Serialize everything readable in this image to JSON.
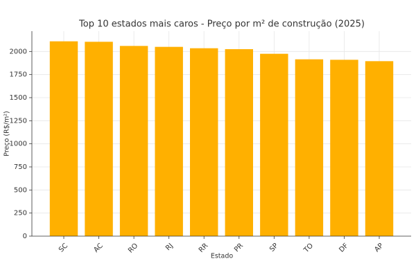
{
  "chart_data": {
    "type": "bar",
    "title": "Top 10 estados mais caros - Preço por m² de construção (2025)",
    "x_label": "Estado",
    "y_label": "Preço (R$/m²)",
    "categories": [
      "SC",
      "AC",
      "RO",
      "RJ",
      "RR",
      "PR",
      "SP",
      "TO",
      "DF",
      "AP"
    ],
    "values": [
      2110,
      2105,
      2060,
      2050,
      2035,
      2025,
      1975,
      1915,
      1910,
      1895
    ],
    "color": "#ffb000",
    "ylim": [
      0,
      2220
    ],
    "yticks": [
      0,
      250,
      500,
      750,
      1000,
      1250,
      1500,
      1750,
      2000
    ],
    "grid": true
  }
}
